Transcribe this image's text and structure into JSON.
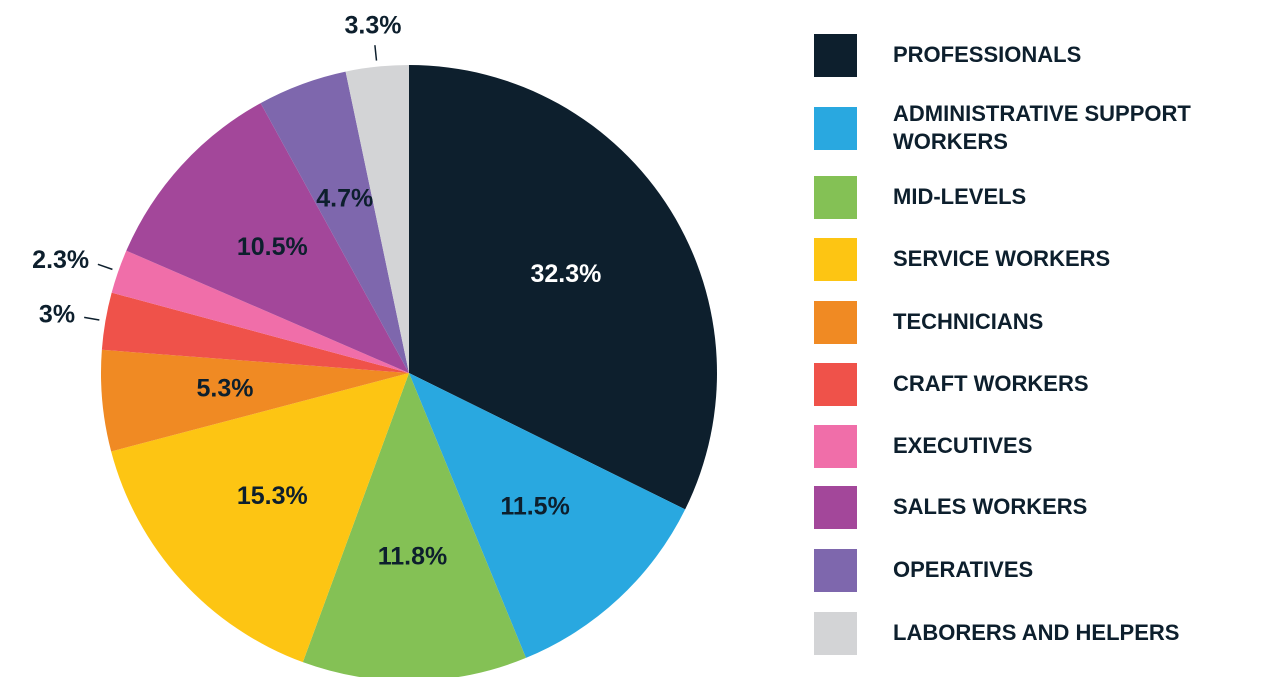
{
  "chart_data": {
    "type": "pie",
    "categories": [
      "PROFESSIONALS",
      "ADMINISTRATIVE SUPPORT WORKERS",
      "MID-LEVELS",
      "SERVICE WORKERS",
      "TECHNICIANS",
      "CRAFT WORKERS",
      "EXECUTIVES",
      "SALES WORKERS",
      "OPERATIVES",
      "LABORERS AND HELPERS"
    ],
    "values": [
      32.3,
      11.5,
      11.8,
      15.3,
      5.3,
      3,
      2.3,
      10.5,
      4.7,
      3.3
    ],
    "colors": [
      "#0d1f2d",
      "#29a8e0",
      "#84c155",
      "#fdc513",
      "#f08a23",
      "#ef524a",
      "#f06ea9",
      "#a3479a",
      "#7e67ad",
      "#d3d4d6"
    ],
    "value_labels": [
      "32.3%",
      "11.5%",
      "11.8%",
      "15.3%",
      "5.3%",
      "3%",
      "2.3%",
      "10.5%",
      "4.7%",
      "3.3%"
    ],
    "legend": "right"
  }
}
